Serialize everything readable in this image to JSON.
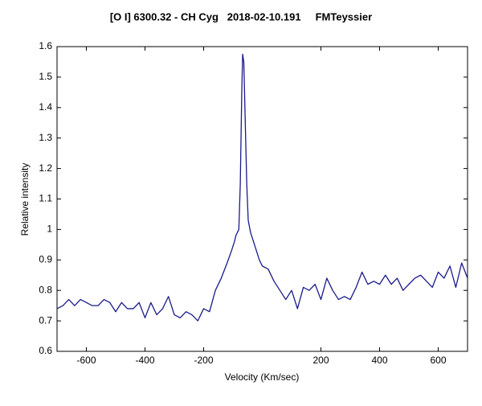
{
  "chart_data": {
    "type": "line",
    "title": "[O I] 6300.32 - CH Cyg   2018-02-10.191     FMTeyssier",
    "x_label": "Velocity (Km/sec)",
    "y_label": "Relative intensity",
    "x": [
      -700,
      -680,
      -660,
      -640,
      -620,
      -600,
      -580,
      -560,
      -540,
      -520,
      -500,
      -480,
      -460,
      -440,
      -420,
      -400,
      -380,
      -360,
      -340,
      -320,
      -300,
      -280,
      -260,
      -240,
      -220,
      -200,
      -180,
      -160,
      -140,
      -120,
      -105,
      -95,
      -90,
      -85,
      -80,
      -75,
      -70,
      -67,
      -63,
      -58,
      -53,
      -48,
      -40,
      -30,
      -20,
      -10,
      0,
      20,
      40,
      60,
      80,
      100,
      120,
      140,
      160,
      180,
      200,
      220,
      240,
      260,
      280,
      300,
      320,
      340,
      360,
      380,
      400,
      420,
      440,
      460,
      480,
      500,
      520,
      540,
      560,
      580,
      600,
      620,
      640,
      660,
      680,
      700
    ],
    "series": [
      {
        "name": "CH Cyg",
        "color": "#1a1a8c",
        "values": [
          0.74,
          0.75,
          0.77,
          0.75,
          0.77,
          0.76,
          0.75,
          0.75,
          0.77,
          0.76,
          0.73,
          0.76,
          0.74,
          0.74,
          0.76,
          0.71,
          0.76,
          0.72,
          0.74,
          0.78,
          0.72,
          0.71,
          0.73,
          0.72,
          0.7,
          0.74,
          0.73,
          0.8,
          0.84,
          0.89,
          0.93,
          0.96,
          0.98,
          0.99,
          1.0,
          1.15,
          1.45,
          1.575,
          1.55,
          1.35,
          1.15,
          1.03,
          0.99,
          0.96,
          0.93,
          0.9,
          0.88,
          0.87,
          0.83,
          0.8,
          0.77,
          0.8,
          0.74,
          0.81,
          0.8,
          0.82,
          0.77,
          0.84,
          0.8,
          0.77,
          0.78,
          0.77,
          0.81,
          0.86,
          0.82,
          0.83,
          0.82,
          0.85,
          0.82,
          0.84,
          0.8,
          0.82,
          0.84,
          0.85,
          0.83,
          0.81,
          0.86,
          0.84,
          0.88,
          0.81,
          0.89,
          0.84
        ]
      }
    ],
    "xlim": [
      -700,
      700
    ],
    "xticks": [
      -600,
      -400,
      -200,
      200,
      400,
      600
    ],
    "ylim": [
      0.6,
      1.6
    ],
    "yticks": [
      0.6,
      0.7,
      0.8,
      0.9,
      1,
      1.1,
      1.2,
      1.3,
      1.4,
      1.5,
      1.6
    ],
    "grid": false
  }
}
